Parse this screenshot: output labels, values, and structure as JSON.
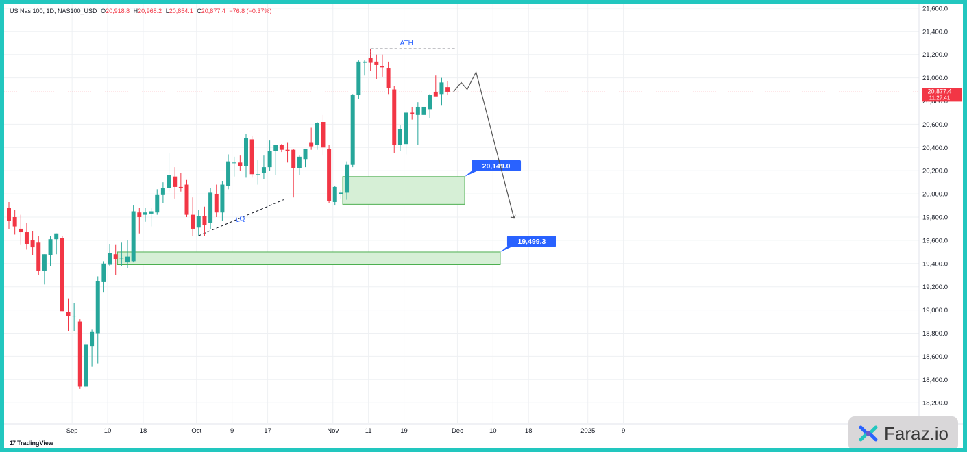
{
  "header": {
    "symbol": "US Nas 100, 1D, NAS100_USD",
    "open_label": "O",
    "open": "20,918.8",
    "high_label": "H",
    "high": "20,968.2",
    "low_label": "L",
    "low": "20,854.1",
    "close_label": "C",
    "close": "20,877.4",
    "change": "−76.8 (−0.37%)"
  },
  "price_tag": {
    "value": "20,877.4",
    "countdown": "11:27:41",
    "color": "#f23645"
  },
  "branding": {
    "tradingview": "TradingView",
    "faraz": "Faraz.io"
  },
  "colors": {
    "up": "#26a69a",
    "down": "#f23645",
    "zone_fill": "#d6efd6",
    "zone_stroke": "#4caf50",
    "callout": "#2962ff",
    "frame": "#22c7bf"
  },
  "chart_data": {
    "type": "candlestick",
    "y_axis": {
      "ticks": [
        18200,
        18400,
        18600,
        18800,
        19000,
        19200,
        19400,
        19600,
        19800,
        20000,
        20200,
        20400,
        20600,
        20800,
        21000,
        21200,
        21400,
        21600
      ],
      "tick_labels": [
        "18,200.0",
        "18,400.0",
        "18,600.0",
        "18,800.0",
        "19,000.0",
        "19,200.0",
        "19,400.0",
        "19,600.0",
        "19,800.0",
        "20,000.0",
        "20,200.0",
        "20,400.0",
        "20,600.0",
        "20,800.0",
        "21,000.0",
        "21,200.0",
        "21,400.0",
        "21,600.0"
      ],
      "range": [
        18090,
        21640
      ]
    },
    "x_axis": {
      "labels": [
        {
          "text": "Sep",
          "pos": 11
        },
        {
          "text": "10",
          "pos": 17
        },
        {
          "text": "18",
          "pos": 23
        },
        {
          "text": "Oct",
          "pos": 32
        },
        {
          "text": "9",
          "pos": 38
        },
        {
          "text": "17",
          "pos": 44
        },
        {
          "text": "Nov",
          "pos": 55
        },
        {
          "text": "11",
          "pos": 61
        },
        {
          "text": "19",
          "pos": 67
        },
        {
          "text": "Dec",
          "pos": 76
        },
        {
          "text": "10",
          "pos": 82
        },
        {
          "text": "18",
          "pos": 88
        },
        {
          "text": "2025",
          "pos": 98
        },
        {
          "text": "9",
          "pos": 104
        }
      ]
    },
    "candles": [
      {
        "o": 19880,
        "h": 19930,
        "l": 19700,
        "c": 19770
      },
      {
        "o": 19800,
        "h": 19860,
        "l": 19650,
        "c": 19720
      },
      {
        "o": 19700,
        "h": 19820,
        "l": 19560,
        "c": 19670
      },
      {
        "o": 19670,
        "h": 19750,
        "l": 19520,
        "c": 19570
      },
      {
        "o": 19600,
        "h": 19680,
        "l": 19470,
        "c": 19540
      },
      {
        "o": 19580,
        "h": 19640,
        "l": 19300,
        "c": 19340
      },
      {
        "o": 19340,
        "h": 19480,
        "l": 19220,
        "c": 19480
      },
      {
        "o": 19470,
        "h": 19640,
        "l": 19380,
        "c": 19610
      },
      {
        "o": 19610,
        "h": 19660,
        "l": 19480,
        "c": 19660
      },
      {
        "o": 19620,
        "h": 19640,
        "l": 18990,
        "c": 18990
      },
      {
        "o": 18980,
        "h": 19100,
        "l": 18820,
        "c": 18950
      },
      {
        "o": 18950,
        "h": 19060,
        "l": 18820,
        "c": 18950
      },
      {
        "o": 18900,
        "h": 18920,
        "l": 18320,
        "c": 18340
      },
      {
        "o": 18340,
        "h": 18730,
        "l": 18330,
        "c": 18700
      },
      {
        "o": 18690,
        "h": 18830,
        "l": 18510,
        "c": 18810
      },
      {
        "o": 18800,
        "h": 19290,
        "l": 18540,
        "c": 19250
      },
      {
        "o": 19240,
        "h": 19420,
        "l": 19150,
        "c": 19400
      },
      {
        "o": 19390,
        "h": 19570,
        "l": 19380,
        "c": 19490
      },
      {
        "o": 19480,
        "h": 19560,
        "l": 19300,
        "c": 19440
      },
      {
        "o": 19450,
        "h": 19580,
        "l": 19380,
        "c": 19450
      },
      {
        "o": 19410,
        "h": 19600,
        "l": 19360,
        "c": 19460
      },
      {
        "o": 19420,
        "h": 19900,
        "l": 19410,
        "c": 19850
      },
      {
        "o": 19840,
        "h": 19880,
        "l": 19660,
        "c": 19800
      },
      {
        "o": 19820,
        "h": 19880,
        "l": 19760,
        "c": 19840
      },
      {
        "o": 19830,
        "h": 19880,
        "l": 19720,
        "c": 19850
      },
      {
        "o": 19840,
        "h": 20040,
        "l": 19820,
        "c": 19990
      },
      {
        "o": 19990,
        "h": 20100,
        "l": 19920,
        "c": 20050
      },
      {
        "o": 20050,
        "h": 20350,
        "l": 20020,
        "c": 20160
      },
      {
        "o": 20150,
        "h": 20230,
        "l": 19960,
        "c": 20060
      },
      {
        "o": 20060,
        "h": 20180,
        "l": 20020,
        "c": 20050
      },
      {
        "o": 20080,
        "h": 20120,
        "l": 19800,
        "c": 19820
      },
      {
        "o": 19820,
        "h": 19970,
        "l": 19640,
        "c": 19700
      },
      {
        "o": 19710,
        "h": 19860,
        "l": 19640,
        "c": 19810
      },
      {
        "o": 19810,
        "h": 19890,
        "l": 19640,
        "c": 19730
      },
      {
        "o": 19750,
        "h": 20050,
        "l": 19700,
        "c": 20010
      },
      {
        "o": 20000,
        "h": 20080,
        "l": 19800,
        "c": 19840
      },
      {
        "o": 19840,
        "h": 20110,
        "l": 19770,
        "c": 20080
      },
      {
        "o": 20070,
        "h": 20340,
        "l": 20040,
        "c": 20280
      },
      {
        "o": 20270,
        "h": 20320,
        "l": 20150,
        "c": 20270
      },
      {
        "o": 20270,
        "h": 20330,
        "l": 20200,
        "c": 20240
      },
      {
        "o": 20240,
        "h": 20520,
        "l": 20140,
        "c": 20480
      },
      {
        "o": 20470,
        "h": 20500,
        "l": 20140,
        "c": 20170
      },
      {
        "o": 20170,
        "h": 20290,
        "l": 20080,
        "c": 20170
      },
      {
        "o": 20180,
        "h": 20330,
        "l": 20130,
        "c": 20230
      },
      {
        "o": 20230,
        "h": 20460,
        "l": 20200,
        "c": 20370
      },
      {
        "o": 20370,
        "h": 20420,
        "l": 20160,
        "c": 20420
      },
      {
        "o": 20420,
        "h": 20430,
        "l": 20360,
        "c": 20380
      },
      {
        "o": 20380,
        "h": 20440,
        "l": 20270,
        "c": 20370
      },
      {
        "o": 20380,
        "h": 20390,
        "l": 19970,
        "c": 20220
      },
      {
        "o": 20220,
        "h": 20330,
        "l": 20160,
        "c": 20320
      },
      {
        "o": 20300,
        "h": 20390,
        "l": 20230,
        "c": 20390
      },
      {
        "o": 20440,
        "h": 20570,
        "l": 20380,
        "c": 20410
      },
      {
        "o": 20420,
        "h": 20620,
        "l": 20380,
        "c": 20610
      },
      {
        "o": 20620,
        "h": 20680,
        "l": 20330,
        "c": 20400
      },
      {
        "o": 20390,
        "h": 20420,
        "l": 19920,
        "c": 19940
      },
      {
        "o": 19930,
        "h": 20070,
        "l": 19900,
        "c": 20060
      },
      {
        "o": 20000,
        "h": 20030,
        "l": 19960,
        "c": 20010
      },
      {
        "o": 20010,
        "h": 20280,
        "l": 19950,
        "c": 20250
      },
      {
        "o": 20250,
        "h": 20860,
        "l": 20230,
        "c": 20850
      },
      {
        "o": 20850,
        "h": 21150,
        "l": 20820,
        "c": 21140
      },
      {
        "o": 21130,
        "h": 21150,
        "l": 21020,
        "c": 21140
      },
      {
        "o": 21170,
        "h": 21250,
        "l": 21060,
        "c": 21130
      },
      {
        "o": 21140,
        "h": 21200,
        "l": 20990,
        "c": 21110
      },
      {
        "o": 21100,
        "h": 21200,
        "l": 21010,
        "c": 21090
      },
      {
        "o": 21080,
        "h": 21140,
        "l": 20860,
        "c": 20910
      },
      {
        "o": 20900,
        "h": 20930,
        "l": 20350,
        "c": 20420
      },
      {
        "o": 20420,
        "h": 20590,
        "l": 20370,
        "c": 20560
      },
      {
        "o": 20430,
        "h": 20720,
        "l": 20340,
        "c": 20700
      },
      {
        "o": 20700,
        "h": 20750,
        "l": 20640,
        "c": 20690
      },
      {
        "o": 20680,
        "h": 20790,
        "l": 20420,
        "c": 20750
      },
      {
        "o": 20680,
        "h": 20780,
        "l": 20620,
        "c": 20750
      },
      {
        "o": 20730,
        "h": 20860,
        "l": 20650,
        "c": 20850
      },
      {
        "o": 20880,
        "h": 21020,
        "l": 20850,
        "c": 20840
      },
      {
        "o": 20860,
        "h": 21000,
        "l": 20760,
        "c": 20960
      },
      {
        "o": 20920,
        "h": 20970,
        "l": 20850,
        "c": 20880
      }
    ],
    "annotations": {
      "ath_label": "ATH",
      "lq_label": "LQ",
      "zones": [
        {
          "label": "20,149.0",
          "top": 20149,
          "bottom": 19910,
          "start": 57,
          "end": 77
        },
        {
          "label": "19,499.3",
          "top": 19499.3,
          "bottom": 19390,
          "start": 19,
          "end": 83
        }
      ],
      "projection_path": [
        {
          "x": 75,
          "y": 20880
        },
        {
          "x": 76.3,
          "y": 20960
        },
        {
          "x": 77.3,
          "y": 20900
        },
        {
          "x": 78.8,
          "y": 21050
        },
        {
          "x": 85.2,
          "y": 19790
        }
      ],
      "ath_level": 21250,
      "lq_line": [
        {
          "x": 32,
          "y": 19640
        },
        {
          "x": 46,
          "y": 19950
        }
      ]
    }
  }
}
